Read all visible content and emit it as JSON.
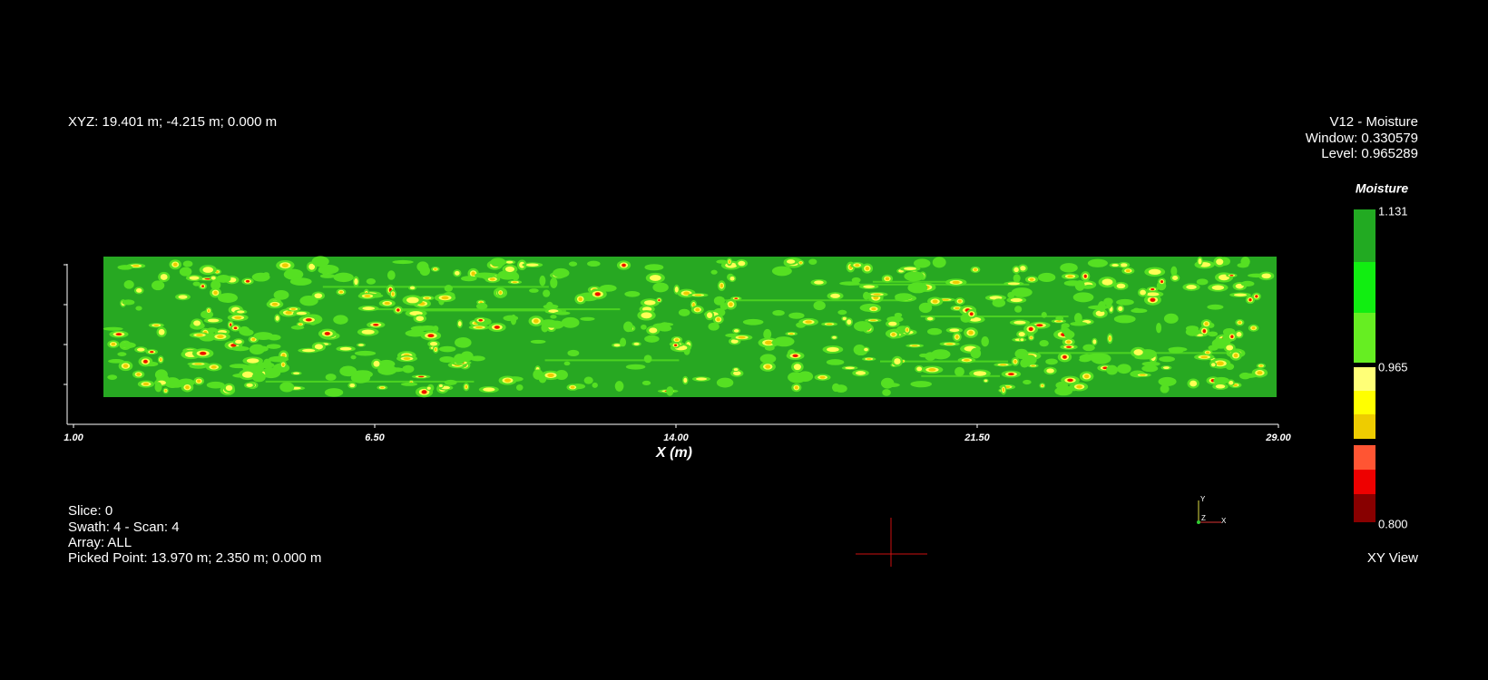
{
  "overlay": {
    "top_left": "XYZ: 19.401 m; -4.215 m; 0.000 m",
    "top_right": [
      "V12 - Moisture",
      "Window: 0.330579",
      "Level: 0.965289"
    ],
    "bottom_left": [
      "Slice:  0",
      "Swath: 4 - Scan: 4",
      "Array: ALL",
      "Picked Point:  13.970 m; 2.350 m; 0.000 m"
    ],
    "bottom_right": "XY View"
  },
  "axis": {
    "x_title": "X (m)",
    "x_ticks": [
      "1.00",
      "6.50",
      "14.00",
      "21.50",
      "29.00"
    ]
  },
  "color_bar": {
    "title": "Moisture",
    "labels": [
      "1.131",
      "0.965",
      "0.800"
    ]
  },
  "orientation": {
    "labels": [
      "Y",
      "Z",
      "X"
    ]
  }
}
